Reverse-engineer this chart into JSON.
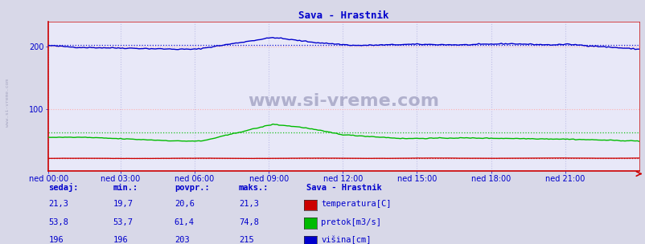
{
  "title": "Sava - Hrastnik",
  "title_color": "#0000cc",
  "bg_color": "#d8d8e8",
  "plot_bg_color": "#e8e8f8",
  "grid_color_h": "#ffb0b0",
  "grid_color_v": "#c0c0e8",
  "watermark": "www.si-vreme.com",
  "x_labels": [
    "ned 00:00",
    "ned 03:00",
    "ned 06:00",
    "ned 09:00",
    "ned 12:00",
    "ned 15:00",
    "ned 18:00",
    "ned 21:00"
  ],
  "x_ticks_norm": [
    0.0,
    0.125,
    0.25,
    0.375,
    0.5,
    0.625,
    0.75,
    0.875
  ],
  "n_points": 288,
  "ylim": [
    0,
    240
  ],
  "yticks": [
    100,
    200
  ],
  "temp_color": "#cc0000",
  "flow_color": "#00bb00",
  "height_color": "#0000cc",
  "legend_title": "Sava - Hrastnik",
  "legend_title_color": "#0000cc",
  "label_color": "#0000cc",
  "stat_color": "#0000cc",
  "sedaj": [
    21.3,
    53.8,
    196
  ],
  "min_vals": [
    19.7,
    53.7,
    196
  ],
  "povpr_vals": [
    20.6,
    61.4,
    203
  ],
  "maks_vals": [
    21.3,
    74.8,
    215
  ],
  "series_labels": [
    "temperatura[C]",
    "pretok[m3/s]",
    "višina[cm]"
  ],
  "swatch_colors": [
    "#cc0000",
    "#00bb00",
    "#0000cc"
  ],
  "spine_color": "#cc0000",
  "watermark_color": "#9999bb",
  "side_watermark_color": "#8888aa"
}
